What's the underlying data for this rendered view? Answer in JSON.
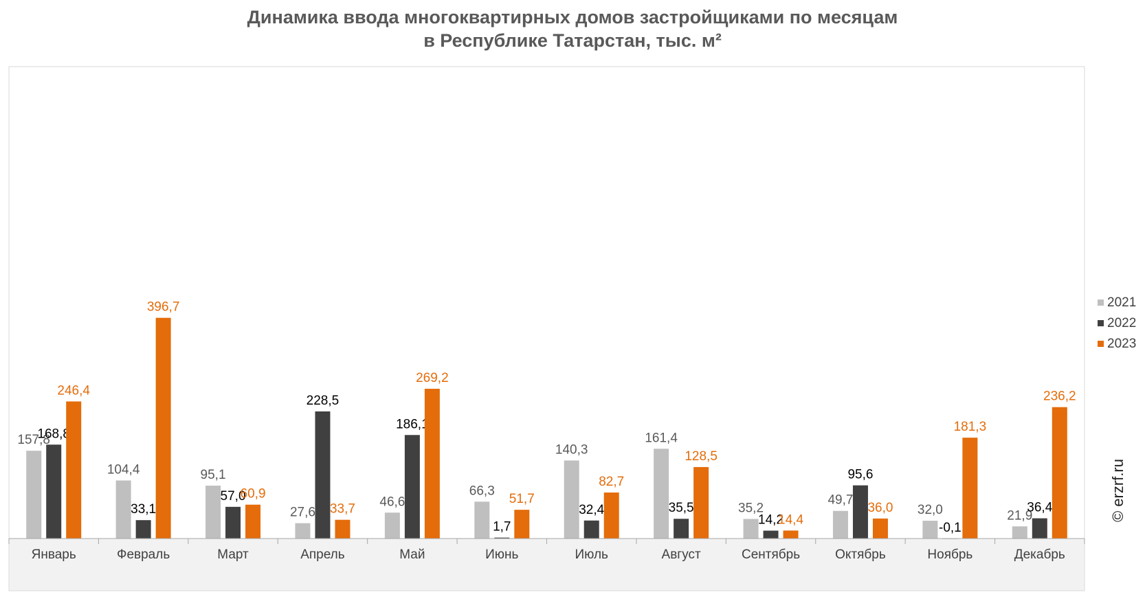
{
  "title_line1": "Динамика ввода многоквартирных домов застройщиками по месяцам",
  "title_line2": "в Республике Татарстан, тыс. м²",
  "credit": "© erzrf.ru",
  "colors": {
    "2021": "#bfbfbf",
    "2022": "#404040",
    "2023": "#e46c0a"
  },
  "chart_data": {
    "type": "bar",
    "title": "Динамика ввода многоквартирных домов застройщиками по месяцам в Республике Татарстан, тыс. м²",
    "categories": [
      "Январь",
      "Февраль",
      "Март",
      "Апрель",
      "Май",
      "Июнь",
      "Июль",
      "Август",
      "Сентябрь",
      "Октябрь",
      "Ноябрь",
      "Декабрь"
    ],
    "series": [
      {
        "name": "2021",
        "values": [
          157.8,
          104.4,
          95.1,
          27.6,
          46.6,
          66.3,
          140.3,
          161.4,
          35.2,
          49.7,
          32.0,
          21.9
        ],
        "labels": [
          "157,8",
          "104,4",
          "95,1",
          "27,6",
          "46,6",
          "66,3",
          "140,3",
          "161,4",
          "35,2",
          "49,7",
          "32,0",
          "21,9"
        ]
      },
      {
        "name": "2022",
        "values": [
          168.8,
          33.1,
          57.0,
          228.5,
          186.1,
          1.7,
          32.4,
          35.5,
          14.2,
          95.6,
          -0.1,
          36.4
        ],
        "labels": [
          "168,8",
          "33,1",
          "57,0",
          "228,5",
          "186,1",
          "1,7",
          "32,4",
          "35,5",
          "14,2",
          "95,6",
          "-0,1",
          "36,4"
        ]
      },
      {
        "name": "2023",
        "values": [
          246.4,
          396.7,
          60.9,
          33.7,
          269.2,
          51.7,
          82.7,
          128.5,
          14.4,
          36.0,
          181.3,
          236.2
        ],
        "labels": [
          "246,4",
          "396,7",
          "60,9",
          "33,7",
          "269,2",
          "51,7",
          "82,7",
          "128,5",
          "14,4",
          "36,0",
          "181,3",
          "236,2"
        ]
      }
    ],
    "legend_position": "right",
    "grid": false
  }
}
